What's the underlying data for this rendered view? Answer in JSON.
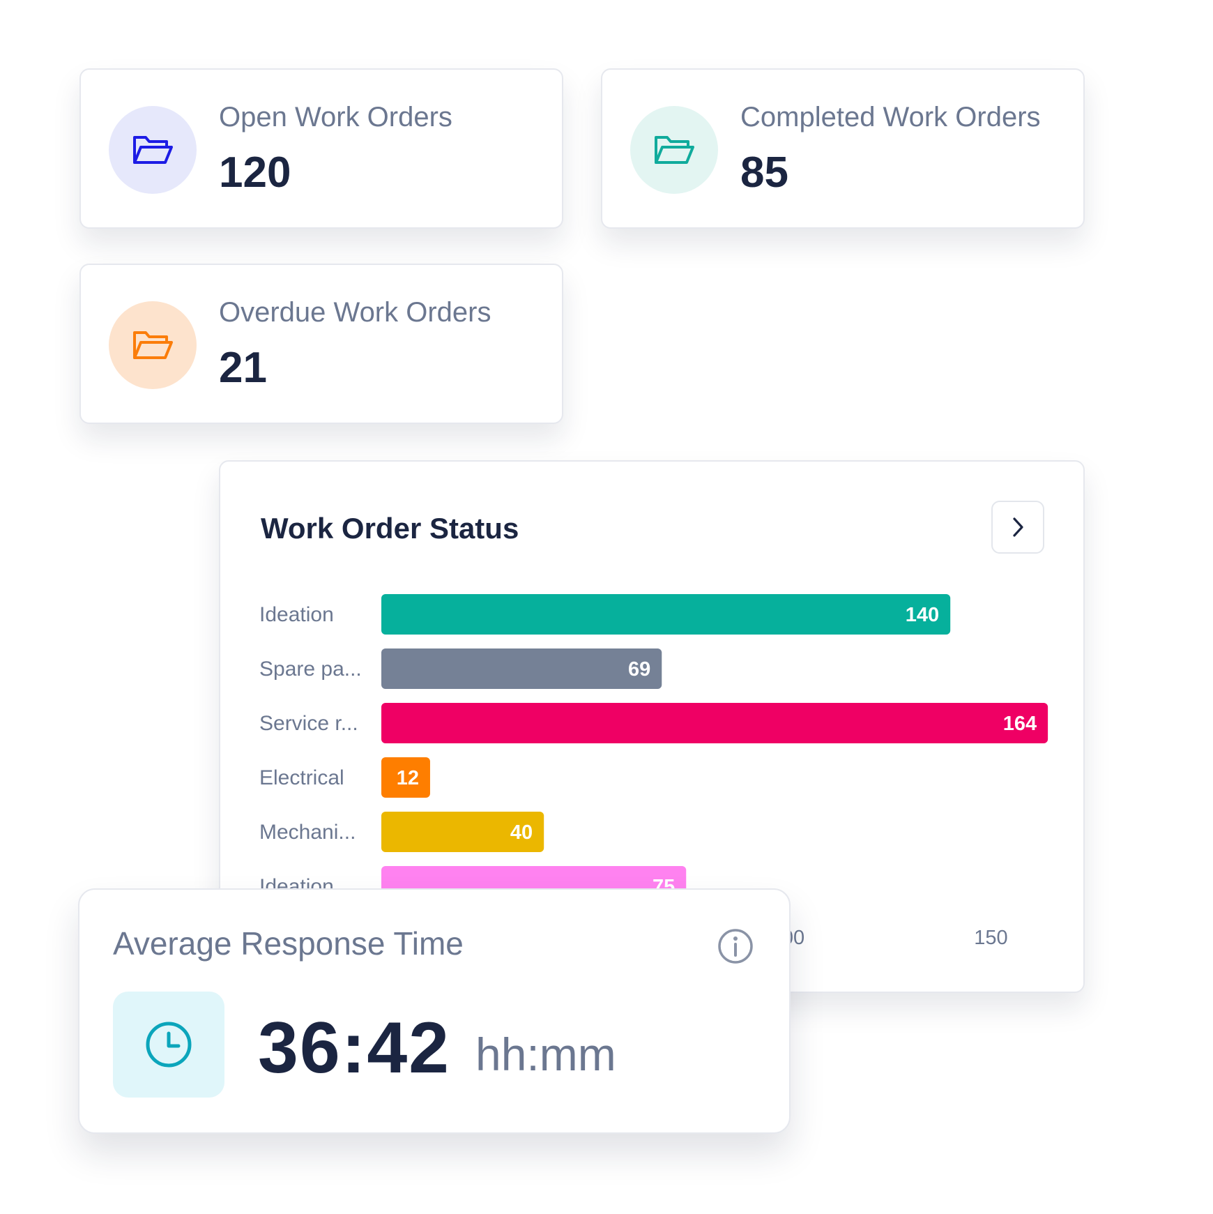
{
  "stats": [
    {
      "label": "Open Work Orders",
      "value": "120",
      "icon": "folder-open-icon",
      "icon_color": "#1d1ce5",
      "icon_bg": "#e6e8fb"
    },
    {
      "label": "Completed Work Orders",
      "value": "85",
      "icon": "folder-open-icon",
      "icon_color": "#10ab9c",
      "icon_bg": "#e3f5f2"
    },
    {
      "label": "Overdue Work Orders",
      "value": "21",
      "icon": "folder-open-icon",
      "icon_color": "#fb7d0a",
      "icon_bg": "#fde3cd"
    }
  ],
  "chart": {
    "next_icon": "chevron-right-icon"
  },
  "chart_data": {
    "type": "bar",
    "orientation": "horizontal",
    "title": "Work Order Status",
    "categories": [
      "Ideation",
      "Spare pa...",
      "Service r...",
      "Electrical",
      "Mechani...",
      "Ideation"
    ],
    "values": [
      140,
      69,
      164,
      12,
      40,
      75
    ],
    "colors": [
      "#06b09c",
      "#758196",
      "#ef0064",
      "#fe7e00",
      "#ebb700",
      "#ff82f0"
    ],
    "x_ticks": [
      100,
      150
    ],
    "xlim": [
      0,
      164
    ],
    "grid": false,
    "legend": "none"
  },
  "response": {
    "title": "Average Response Time",
    "value": "36:42",
    "unit": "hh:mm",
    "icon": "clock-icon",
    "info_icon": "info-icon"
  }
}
